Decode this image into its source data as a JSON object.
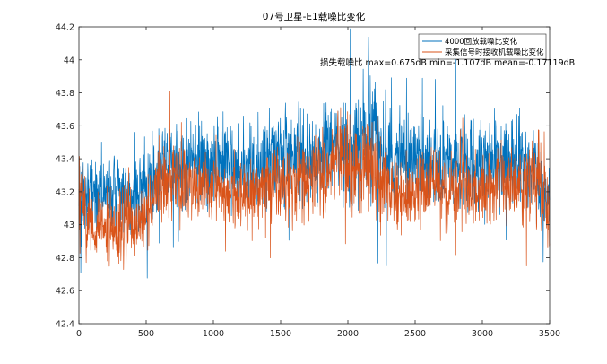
{
  "chart_data": {
    "type": "line",
    "title": "07号卫星-E1载噪比变化",
    "xlabel": "",
    "ylabel": "",
    "xlim": [
      0,
      3500
    ],
    "ylim": [
      42.4,
      44.2
    ],
    "xticks": [
      0,
      500,
      1000,
      1500,
      2000,
      2500,
      3000,
      3500
    ],
    "yticks": [
      42.4,
      42.6,
      42.8,
      43,
      43.2,
      43.4,
      43.6,
      43.8,
      44,
      44.2
    ],
    "grid": false,
    "legend_position": "top-right",
    "annotation": "损失载噪比 max=0.675dB min=-1.107dB mean=-0.17119dB",
    "n_points": 3500,
    "series": [
      {
        "name": "4000回放载噪比变化",
        "color": "#0072BD",
        "envelope_x": [
          0,
          100,
          200,
          300,
          400,
          500,
          600,
          700,
          800,
          900,
          1000,
          1100,
          1200,
          1300,
          1400,
          1500,
          1600,
          1700,
          1800,
          1900,
          2000,
          2100,
          2200,
          2300,
          2400,
          2500,
          2600,
          2700,
          2800,
          2900,
          3000,
          3100,
          3200,
          3300,
          3400,
          3500
        ],
        "envelope_mean": [
          43.15,
          43.22,
          43.2,
          43.18,
          43.18,
          43.22,
          43.42,
          43.38,
          43.38,
          43.38,
          43.4,
          43.4,
          43.35,
          43.35,
          43.4,
          43.45,
          43.42,
          43.42,
          43.42,
          43.5,
          43.45,
          43.5,
          43.55,
          43.42,
          43.45,
          43.42,
          43.35,
          43.38,
          43.4,
          43.35,
          43.38,
          43.4,
          43.42,
          43.35,
          43.32,
          43.1
        ],
        "envelope_amp": [
          0.35,
          0.3,
          0.3,
          0.3,
          0.3,
          0.32,
          0.4,
          0.35,
          0.35,
          0.35,
          0.35,
          0.35,
          0.32,
          0.35,
          0.35,
          0.38,
          0.35,
          0.35,
          0.38,
          0.4,
          0.4,
          0.45,
          0.45,
          0.38,
          0.38,
          0.35,
          0.35,
          0.35,
          0.35,
          0.35,
          0.35,
          0.38,
          0.38,
          0.38,
          0.38,
          0.3
        ],
        "max": 44.2,
        "min": 42.6
      },
      {
        "name": "采集信号时接收机载噪比变化",
        "color": "#D95319",
        "envelope_x": [
          0,
          100,
          200,
          300,
          400,
          500,
          600,
          700,
          800,
          900,
          1000,
          1100,
          1200,
          1300,
          1400,
          1500,
          1600,
          1700,
          1800,
          1900,
          2000,
          2100,
          2200,
          2300,
          2400,
          2500,
          2600,
          2700,
          2800,
          2900,
          3000,
          3100,
          3200,
          3300,
          3400,
          3500
        ],
        "envelope_mean": [
          43.15,
          43.0,
          43.0,
          42.95,
          43.0,
          43.05,
          43.3,
          43.25,
          43.2,
          43.25,
          43.25,
          43.2,
          43.2,
          43.2,
          43.25,
          43.25,
          43.25,
          43.25,
          43.3,
          43.4,
          43.35,
          43.35,
          43.35,
          43.2,
          43.2,
          43.2,
          43.25,
          43.25,
          43.25,
          43.2,
          43.2,
          43.25,
          43.25,
          43.25,
          43.3,
          43.05
        ],
        "envelope_amp": [
          0.4,
          0.35,
          0.3,
          0.4,
          0.3,
          0.3,
          0.35,
          0.3,
          0.3,
          0.3,
          0.32,
          0.3,
          0.28,
          0.28,
          0.3,
          0.3,
          0.3,
          0.3,
          0.35,
          0.4,
          0.35,
          0.35,
          0.35,
          0.3,
          0.3,
          0.3,
          0.3,
          0.3,
          0.3,
          0.3,
          0.3,
          0.3,
          0.3,
          0.35,
          0.45,
          0.35
        ],
        "max": 43.95,
        "min": 42.45
      }
    ]
  }
}
